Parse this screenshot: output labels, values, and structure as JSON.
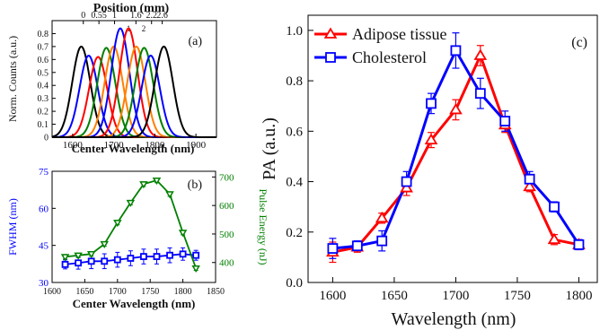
{
  "chart_data": [
    {
      "panel": "(a)",
      "type": "line",
      "top_axis_label": "Position (mm)",
      "top_ticks": [
        "0",
        "0.55",
        "1",
        "1.6",
        "2.2",
        "2.6"
      ],
      "top_tick_positions_nm": [
        1626,
        1664,
        1702,
        1754,
        1792,
        1818
      ],
      "top_minor_labels": [
        "1",
        "2"
      ],
      "top_minor_positions_nm": [
        1736,
        1773
      ],
      "xlabel": "Center Wavelength (nm)",
      "ylabel": "Norm. Counts (a.u.)",
      "xlim": [
        1550,
        1950
      ],
      "ylim": [
        0,
        0.9
      ],
      "xticks": [
        1600,
        1700,
        1800,
        1900
      ],
      "yticks": [
        0,
        0.1,
        0.2,
        0.3,
        0.4,
        0.5,
        0.6,
        0.7,
        0.8
      ],
      "series": [
        {
          "center": 1621,
          "peak": 0.7,
          "color": "#000000"
        },
        {
          "center": 1639,
          "peak": 0.63,
          "color": "#0000ff"
        },
        {
          "center": 1662,
          "peak": 0.62,
          "color": "#ff0000"
        },
        {
          "center": 1682,
          "peak": 0.69,
          "color": "#008000"
        },
        {
          "center": 1700,
          "peak": 0.7,
          "color": "#ff8000"
        },
        {
          "center": 1716,
          "peak": 0.84,
          "color": "#0000ff"
        },
        {
          "center": 1736,
          "peak": 0.84,
          "color": "#ff0000"
        },
        {
          "center": 1755,
          "peak": 0.7,
          "color": "#ff8000"
        },
        {
          "center": 1774,
          "peak": 0.69,
          "color": "#008000"
        },
        {
          "center": 1790,
          "peak": 0.63,
          "color": "#0000ff"
        },
        {
          "center": 1822,
          "peak": 0.7,
          "color": "#000000"
        }
      ],
      "width_sigma_nm": 22
    },
    {
      "panel": "(b)",
      "type": "line",
      "xlabel": "Center Wavelength (nm)",
      "ylabel_left": "FWHM (nm)",
      "ylabel_right": "Pulse Energy (nJ)",
      "xlim": [
        1600,
        1850
      ],
      "xticks": [
        1600,
        1650,
        1700,
        1750,
        1800,
        1850
      ],
      "ylim_left": [
        30,
        75
      ],
      "yticks_left": [
        30,
        45,
        60,
        75
      ],
      "ylim_right": [
        330,
        720
      ],
      "yticks_right": [
        400,
        500,
        600,
        700
      ],
      "x": [
        1620,
        1640,
        1660,
        1680,
        1700,
        1720,
        1740,
        1760,
        1780,
        1800,
        1820
      ],
      "series": [
        {
          "axis": "left",
          "color": "#0000ff",
          "marker": "square",
          "values": [
            37.3,
            37.9,
            38.6,
            38.6,
            39.2,
            39.8,
            40.5,
            40.5,
            41.0,
            41.5,
            41.0
          ],
          "errors": [
            1.8,
            2.5,
            3.0,
            3.0,
            3.0,
            3.0,
            3.0,
            3.0,
            3.0,
            2.5,
            2.0
          ]
        },
        {
          "axis": "right",
          "color": "#008000",
          "marker": "triangle-down",
          "values": [
            420,
            425,
            430,
            465,
            540,
            610,
            675,
            688,
            640,
            505,
            380
          ],
          "errors": [
            8,
            8,
            8,
            8,
            8,
            8,
            8,
            8,
            8,
            8,
            8
          ]
        }
      ]
    },
    {
      "panel": "(c)",
      "type": "line",
      "xlabel": "Wavelength (nm)",
      "ylabel": "PA (a.u.)",
      "xlim": [
        1580,
        1815
      ],
      "ylim": [
        0.0,
        1.06
      ],
      "xticks": [
        1600,
        1650,
        1700,
        1750,
        1800
      ],
      "yticks": [
        0.0,
        0.2,
        0.4,
        0.6,
        0.8,
        1.0
      ],
      "x": [
        1600,
        1620,
        1640,
        1660,
        1680,
        1700,
        1720,
        1740,
        1760,
        1780,
        1800
      ],
      "series": [
        {
          "name": "Adipose tissue",
          "color": "#ff0000",
          "marker": "triangle-up",
          "values": [
            0.12,
            0.14,
            0.255,
            0.375,
            0.565,
            0.685,
            0.9,
            0.625,
            0.38,
            0.17,
            0.15
          ],
          "errors": [
            0.04,
            0.02,
            0.02,
            0.03,
            0.03,
            0.04,
            0.04,
            0.03,
            0.02,
            0.02,
            0.02
          ]
        },
        {
          "name": "Cholesterol",
          "color": "#0000ff",
          "marker": "square",
          "values": [
            0.135,
            0.145,
            0.165,
            0.4,
            0.71,
            0.92,
            0.75,
            0.64,
            0.41,
            0.3,
            0.15
          ],
          "errors": [
            0.04,
            0.02,
            0.04,
            0.04,
            0.04,
            0.07,
            0.06,
            0.04,
            0.03,
            0.02,
            0.02
          ]
        }
      ]
    }
  ]
}
